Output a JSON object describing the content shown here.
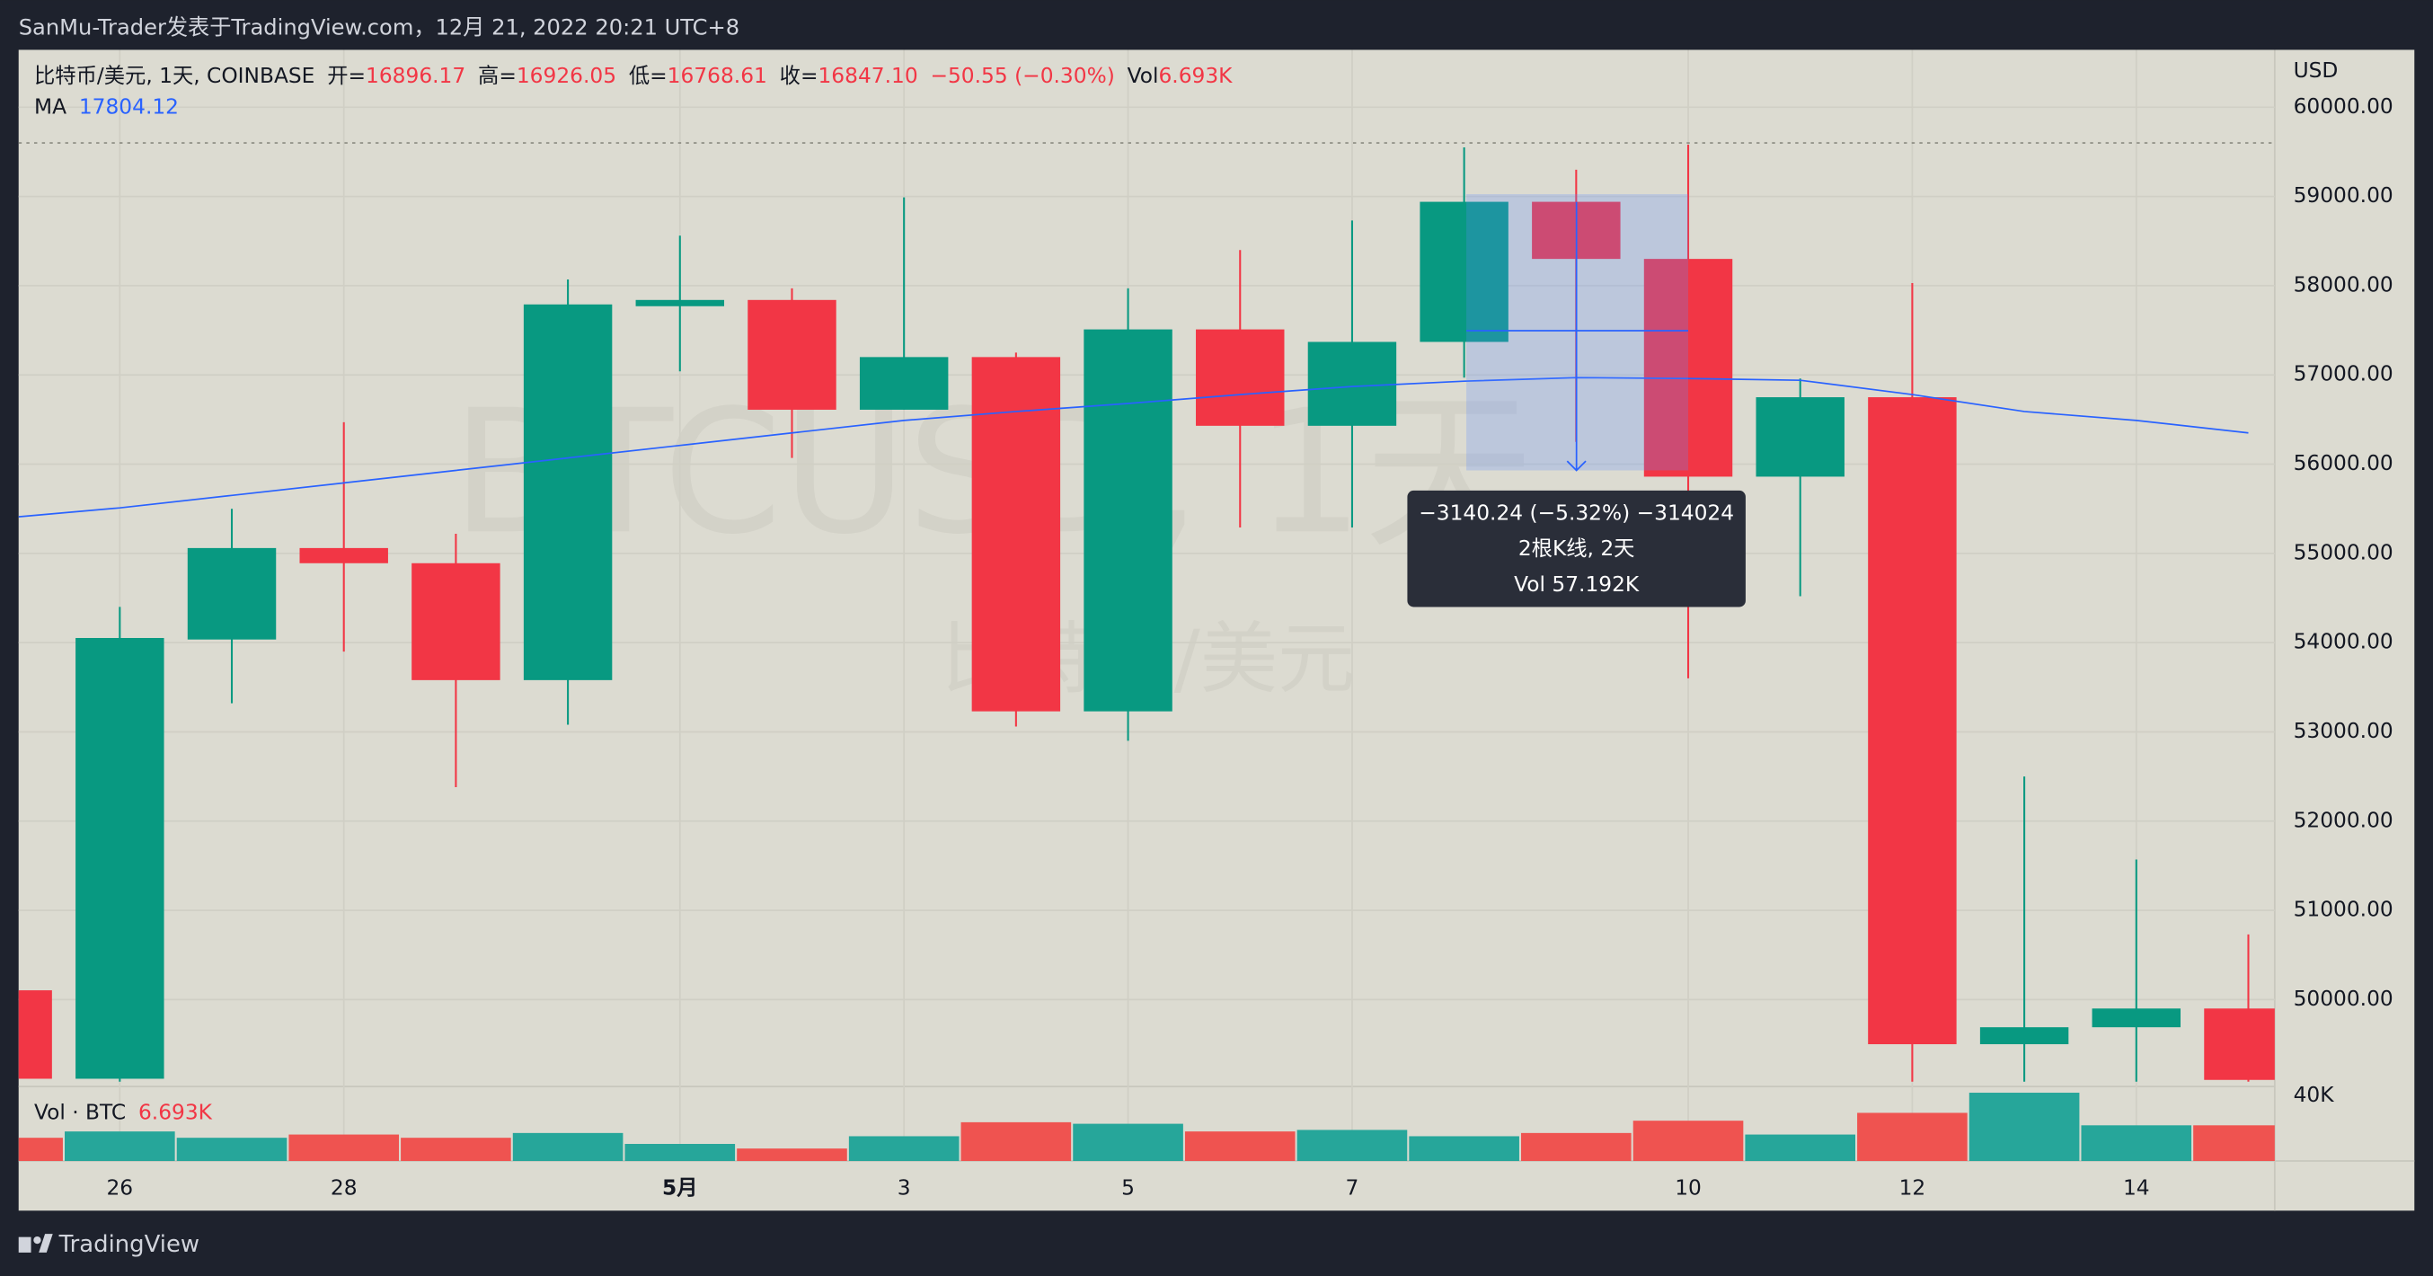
{
  "header": {
    "text": "SanMu-Trader发表于TradingView.com，12月 21, 2022 20:21 UTC+8"
  },
  "legend": {
    "symbol": "比特币/美元, 1天, COINBASE",
    "open_label": "开=",
    "open": "16896.17",
    "high_label": "高=",
    "high": "16926.05",
    "low_label": "低=",
    "low": "16768.61",
    "close_label": "收=",
    "close": "16847.10",
    "change": "−50.55 (−0.30%)",
    "vol_label": "Vol",
    "vol": "6.693K",
    "ma_label": "MA",
    "ma": "17804.12"
  },
  "watermark": {
    "symbol": "BTCUSD, 1天",
    "name": "比特币/美元"
  },
  "tooltip": {
    "line1": "−3140.24 (−5.32%) −314024",
    "line2": "2根K线, 2天",
    "line3": "Vol 57.192K"
  },
  "footer": {
    "brand": "TradingView"
  },
  "chart_data": {
    "type": "candlestick",
    "currency": "USD",
    "categories": [
      null,
      "26",
      null,
      "28",
      null,
      null,
      "5月",
      null,
      "3",
      null,
      "5",
      null,
      "7",
      null,
      null,
      "10",
      null,
      "12",
      null,
      "14",
      null
    ],
    "open": [
      50104,
      49113,
      54035,
      55060,
      54890,
      53580,
      57770,
      57840,
      56610,
      57200,
      53230,
      57510,
      56430,
      57370,
      58940,
      58300,
      55860,
      56750,
      49500,
      49690,
      49900
    ],
    "high": [
      50104,
      54400,
      55500,
      56470,
      55220,
      58070,
      58560,
      57970,
      58990,
      57250,
      57970,
      58400,
      58730,
      59550,
      59300,
      59580,
      56960,
      58030,
      52500,
      51570,
      50730
    ],
    "low": [
      49100,
      49080,
      53320,
      53900,
      52380,
      53080,
      57040,
      56070,
      56610,
      53060,
      52900,
      55290,
      55290,
      56970,
      56250,
      53600,
      54520,
      49080,
      49080,
      49080,
      49080
    ],
    "close": [
      49113,
      54052,
      55060,
      54890,
      53580,
      57790,
      57840,
      56610,
      57200,
      53230,
      57510,
      56430,
      57370,
      58940,
      58300,
      55860,
      56750,
      49500,
      49690,
      49900,
      49100
    ],
    "up_color": "#089981",
    "down_color": "#f23645",
    "ma": {
      "name": "MA",
      "color": "#2962ff",
      "values": [
        55400,
        55510,
        55650,
        55790,
        55930,
        56070,
        56210,
        56350,
        56490,
        56590,
        56680,
        56780,
        56870,
        56930,
        56970,
        56960,
        56940,
        56780,
        56590,
        56490,
        56350
      ]
    },
    "ylim": [
      49026,
      60643
    ],
    "yticks": [
      {
        "value": 50000,
        "label": "50000.00"
      },
      {
        "value": 51000,
        "label": "51000.00"
      },
      {
        "value": 52000,
        "label": "52000.00"
      },
      {
        "value": 53000,
        "label": "53000.00"
      },
      {
        "value": 54000,
        "label": "54000.00"
      },
      {
        "value": 55000,
        "label": "55000.00"
      },
      {
        "value": 56000,
        "label": "56000.00"
      },
      {
        "value": 57000,
        "label": "57000.00"
      },
      {
        "value": 58000,
        "label": "58000.00"
      },
      {
        "value": 59000,
        "label": "59000.00"
      },
      {
        "value": 60000,
        "label": "60000.00"
      }
    ],
    "grid": true,
    "volume": {
      "name": "Vol · BTC",
      "last": "6.693K",
      "up_color": "#26a69a",
      "down_color": "#ef5350",
      "values": [
        13600,
        17300,
        13600,
        15500,
        13600,
        16400,
        10000,
        7300,
        14500,
        22700,
        21800,
        17300,
        18200,
        14500,
        16400,
        23600,
        15500,
        28200,
        40000,
        20900,
        20900
      ],
      "ylim": [
        0,
        40000
      ],
      "yticks": [
        {
          "value": 40000,
          "label": "40K"
        }
      ]
    }
  }
}
